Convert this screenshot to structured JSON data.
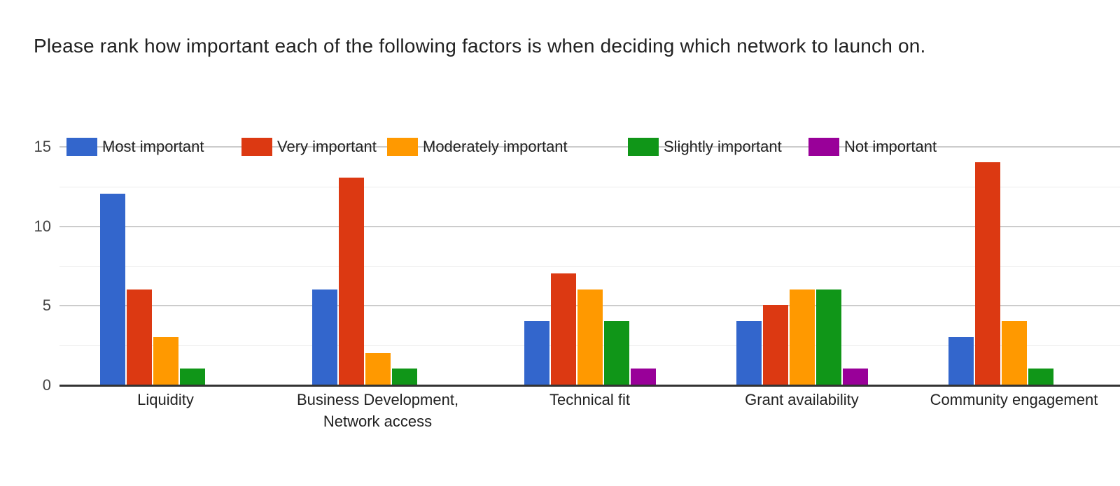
{
  "chart_data": {
    "type": "bar",
    "title": "Please rank how important each of the following factors is when deciding which network to launch on.",
    "categories": [
      "Liquidity",
      "Business Development,\nNetwork access",
      "Technical fit",
      "Grant availability",
      "Community engagement"
    ],
    "series": [
      {
        "name": "Most important",
        "color": "#3366CC",
        "values": [
          12,
          6,
          4,
          4,
          3
        ]
      },
      {
        "name": "Very important",
        "color": "#DC3912",
        "values": [
          6,
          13,
          7,
          5,
          14
        ]
      },
      {
        "name": "Moderately important",
        "color": "#FF9900",
        "values": [
          3,
          2,
          6,
          6,
          4
        ]
      },
      {
        "name": "Slightly important",
        "color": "#109618",
        "values": [
          1,
          1,
          4,
          6,
          1
        ]
      },
      {
        "name": "Not important",
        "color": "#990099",
        "values": [
          0,
          0,
          1,
          1,
          0
        ]
      }
    ],
    "ylim": [
      0,
      15
    ],
    "yticks": [
      0,
      5,
      10,
      15
    ],
    "minor_ticks": [
      2.5,
      7.5,
      12.5
    ],
    "grid": true,
    "legend_position": "top",
    "axis_color": "#333333",
    "major_grid_color": "#cccccc",
    "minor_grid_color": "#ebebeb"
  }
}
